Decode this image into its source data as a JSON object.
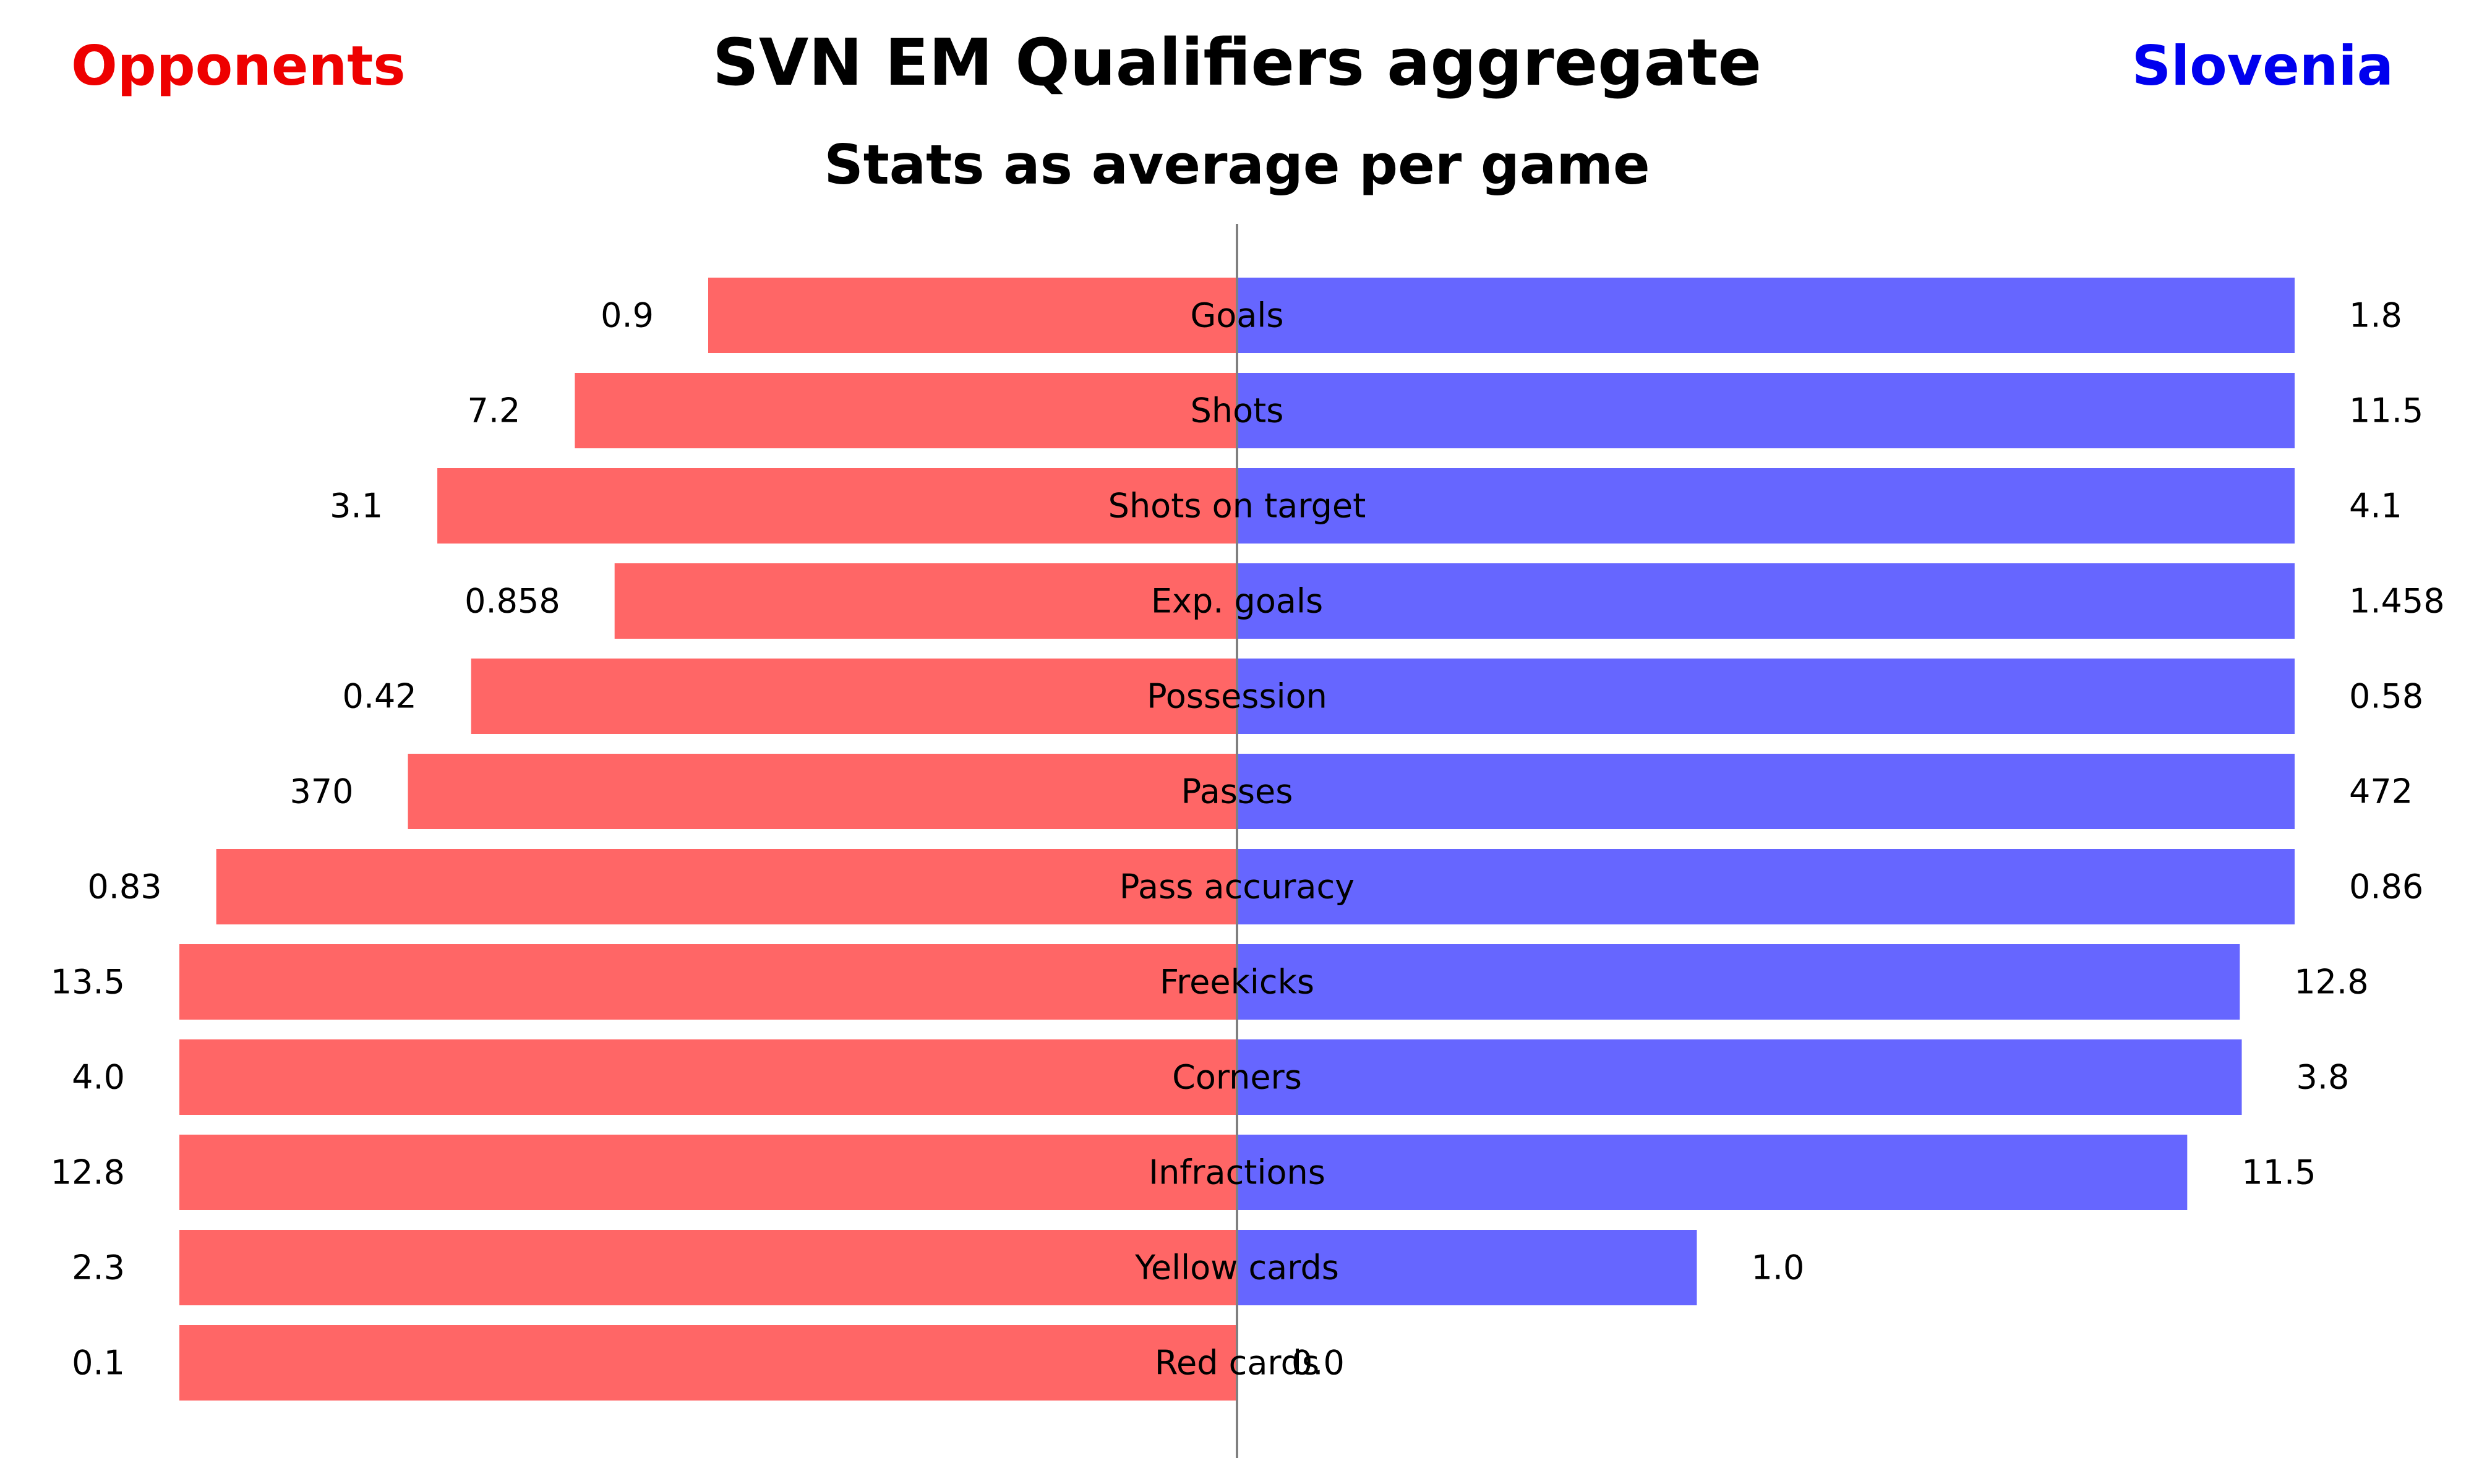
{
  "title": "SVN EM Qualifiers aggregate",
  "subtitle": "Stats as average per game",
  "left_team": {
    "name": "Opponents",
    "color": "#ee0000"
  },
  "right_team": {
    "name": "Slovenia",
    "color": "#0000ee"
  },
  "colors": {
    "left_bar": "#ff6666",
    "right_bar": "#6666ff",
    "axis": "#808080"
  },
  "chart_data": {
    "type": "bar",
    "orientation": "horizontal-diverging",
    "categories": [
      "Goals",
      "Shots",
      "Shots on target",
      "Exp. goals",
      "Possession",
      "Passes",
      "Pass accuracy",
      "Freekicks",
      "Corners",
      "Infractions",
      "Yellow cards",
      "Red cards"
    ],
    "series": [
      {
        "name": "Opponents",
        "values": [
          0.9,
          7.2,
          3.1,
          0.858,
          0.42,
          370,
          0.83,
          13.5,
          4.0,
          12.8,
          2.3,
          0.1
        ],
        "labels": [
          "0.9",
          "7.2",
          "3.1",
          "0.858",
          "0.42",
          "370",
          "0.83",
          "13.5",
          "4.0",
          "12.8",
          "2.3",
          "0.1"
        ]
      },
      {
        "name": "Slovenia",
        "values": [
          1.8,
          11.5,
          4.1,
          1.458,
          0.58,
          472,
          0.86,
          12.8,
          3.8,
          11.5,
          1.0,
          0.0
        ],
        "labels": [
          "1.8",
          "11.5",
          "4.1",
          "1.458",
          "0.58",
          "472",
          "0.86",
          "12.8",
          "3.8",
          "11.5",
          "1.0",
          "0.0"
        ]
      }
    ],
    "scaling": "each row scaled to the larger of the two values",
    "grid": false,
    "legend": "team names top-left and top-right"
  }
}
